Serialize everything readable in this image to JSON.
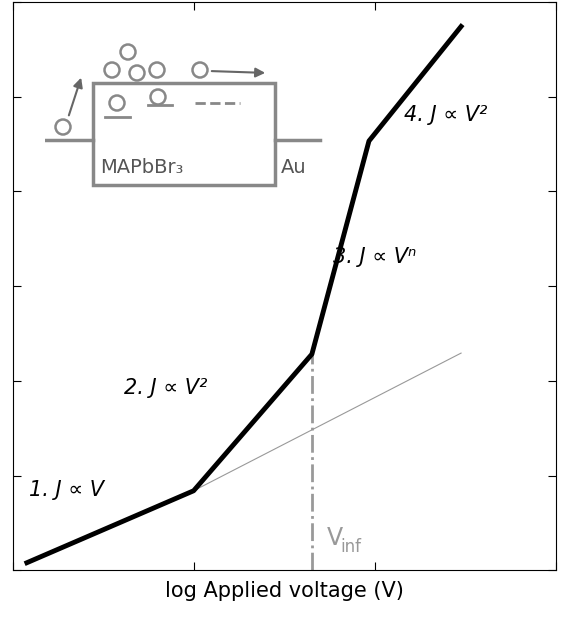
{
  "chart_data": {
    "type": "line",
    "xlabel": "log Applied voltage (V)",
    "log": true,
    "tick_labels": false,
    "xlim": [
      1,
      1000
    ],
    "xticks": [
      1,
      10,
      100,
      1000
    ],
    "ylim": [
      1,
      1000000
    ],
    "yticks": [
      1,
      10,
      100,
      1000,
      10000,
      100000,
      1000000
    ],
    "series": [
      {
        "x": [
          1.2,
          10,
          45,
          93,
          300
        ],
        "values": [
          1.2,
          6.9,
          191,
          34000,
          550000
        ],
        "color": "#000000",
        "line_style": "solid"
      },
      {
        "x": [
          10,
          300
        ],
        "values": [
          6.9,
          196
        ],
        "color": "#999999",
        "line_style": "solid"
      }
    ],
    "reference_line": {
      "x": 45,
      "top": 191,
      "color": "#999999",
      "line_style": "dashdot",
      "label": {
        "text": "V",
        "subscript": "inf"
      }
    },
    "annotations": [
      "1. J ∝ V",
      "2. J ∝ V²",
      "3. J ∝ Vⁿ",
      "4. J ∝ V²"
    ],
    "inset": {
      "material": "MAPbBr₃",
      "electrode": "Au"
    }
  }
}
